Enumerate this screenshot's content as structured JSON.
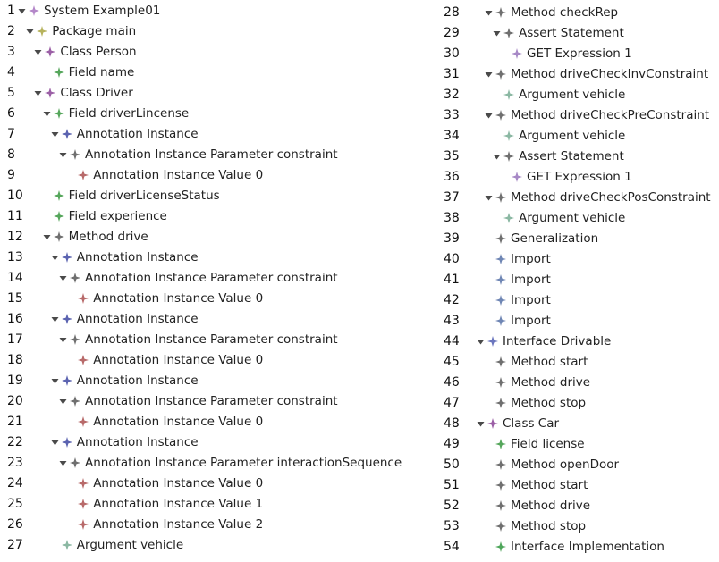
{
  "colors": {
    "system": "#b487c9",
    "package": "#b7b35d",
    "class": "#9b5fa6",
    "field": "#55a65b",
    "annotation": "#5b63b0",
    "annotation_value": "#b86a6a",
    "neutral": "#6f6f6f",
    "argument": "#8bb8a3",
    "expression": "#a789c6",
    "interface": "#6b76be",
    "import": "#6f86b4",
    "field_license": "#4fa65b"
  },
  "left_column": [
    {
      "num": "1",
      "label": "System Example01",
      "depth": 0,
      "expanded": true,
      "icon": "system-icon"
    },
    {
      "num": "2",
      "label": "Package main",
      "depth": 1,
      "expanded": true,
      "icon": "package-icon"
    },
    {
      "num": "3",
      "label": "Class Person",
      "depth": 2,
      "expanded": true,
      "icon": "class-icon"
    },
    {
      "num": "4",
      "label": "Field name",
      "depth": 3,
      "expanded": null,
      "icon": "field-icon"
    },
    {
      "num": "5",
      "label": "Class Driver",
      "depth": 2,
      "expanded": true,
      "icon": "class-icon"
    },
    {
      "num": "6",
      "label": "Field driverLincense",
      "depth": 3,
      "expanded": true,
      "icon": "field-icon"
    },
    {
      "num": "7",
      "label": "Annotation Instance",
      "depth": 4,
      "expanded": true,
      "icon": "annotation-icon"
    },
    {
      "num": "8",
      "label": "Annotation Instance Parameter constraint",
      "depth": 5,
      "expanded": true,
      "icon": "parameter-icon"
    },
    {
      "num": "9",
      "label": "Annotation Instance Value 0",
      "depth": 6,
      "expanded": null,
      "icon": "value-icon"
    },
    {
      "num": "10",
      "label": "Field driverLicenseStatus",
      "depth": 3,
      "expanded": null,
      "icon": "field-icon"
    },
    {
      "num": "11",
      "label": "Field experience",
      "depth": 3,
      "expanded": null,
      "icon": "field-icon"
    },
    {
      "num": "12",
      "label": "Method drive",
      "depth": 3,
      "expanded": true,
      "icon": "method-icon"
    },
    {
      "num": "13",
      "label": "Annotation Instance",
      "depth": 4,
      "expanded": true,
      "icon": "annotation-icon"
    },
    {
      "num": "14",
      "label": "Annotation Instance Parameter constraint",
      "depth": 5,
      "expanded": true,
      "icon": "parameter-icon"
    },
    {
      "num": "15",
      "label": "Annotation Instance Value 0",
      "depth": 6,
      "expanded": null,
      "icon": "value-icon"
    },
    {
      "num": "16",
      "label": "Annotation Instance",
      "depth": 4,
      "expanded": true,
      "icon": "annotation-icon"
    },
    {
      "num": "17",
      "label": "Annotation Instance Parameter constraint",
      "depth": 5,
      "expanded": true,
      "icon": "parameter-icon"
    },
    {
      "num": "18",
      "label": "Annotation Instance Value 0",
      "depth": 6,
      "expanded": null,
      "icon": "value-icon"
    },
    {
      "num": "19",
      "label": "Annotation Instance",
      "depth": 4,
      "expanded": true,
      "icon": "annotation-icon"
    },
    {
      "num": "20",
      "label": "Annotation Instance Parameter constraint",
      "depth": 5,
      "expanded": true,
      "icon": "parameter-icon"
    },
    {
      "num": "21",
      "label": "Annotation Instance Value 0",
      "depth": 6,
      "expanded": null,
      "icon": "value-icon"
    },
    {
      "num": "22",
      "label": "Annotation Instance",
      "depth": 4,
      "expanded": true,
      "icon": "annotation-icon"
    },
    {
      "num": "23",
      "label": "Annotation Instance Parameter interactionSequence",
      "depth": 5,
      "expanded": true,
      "icon": "parameter-icon"
    },
    {
      "num": "24",
      "label": "Annotation Instance Value 0",
      "depth": 6,
      "expanded": null,
      "icon": "value-icon"
    },
    {
      "num": "25",
      "label": "Annotation Instance Value 1",
      "depth": 6,
      "expanded": null,
      "icon": "value-icon"
    },
    {
      "num": "26",
      "label": "Annotation Instance Value 2",
      "depth": 6,
      "expanded": null,
      "icon": "value-icon"
    },
    {
      "num": "27",
      "label": "Argument vehicle",
      "depth": 4,
      "expanded": null,
      "icon": "argument-icon"
    }
  ],
  "right_column": [
    {
      "num": "28",
      "label": "Method checkRep",
      "depth": 1,
      "expanded": true,
      "icon": "method-icon"
    },
    {
      "num": "29",
      "label": "Assert Statement",
      "depth": 2,
      "expanded": true,
      "icon": "statement-icon"
    },
    {
      "num": "30",
      "label": "GET Expression 1",
      "depth": 3,
      "expanded": null,
      "icon": "expression-icon"
    },
    {
      "num": "31",
      "label": "Method driveCheckInvConstraint",
      "depth": 1,
      "expanded": true,
      "icon": "method-icon"
    },
    {
      "num": "32",
      "label": "Argument vehicle",
      "depth": 2,
      "expanded": null,
      "icon": "argument-icon"
    },
    {
      "num": "33",
      "label": "Method driveCheckPreConstraint",
      "depth": 1,
      "expanded": true,
      "icon": "method-icon"
    },
    {
      "num": "34",
      "label": "Argument vehicle",
      "depth": 2,
      "expanded": null,
      "icon": "argument-icon"
    },
    {
      "num": "35",
      "label": "Assert Statement",
      "depth": 2,
      "expanded": true,
      "icon": "statement-icon"
    },
    {
      "num": "36",
      "label": "GET Expression 1",
      "depth": 3,
      "expanded": null,
      "icon": "expression-icon"
    },
    {
      "num": "37",
      "label": "Method driveCheckPosConstraint",
      "depth": 1,
      "expanded": true,
      "icon": "method-icon"
    },
    {
      "num": "38",
      "label": "Argument vehicle",
      "depth": 2,
      "expanded": null,
      "icon": "argument-icon"
    },
    {
      "num": "39",
      "label": "Generalization",
      "depth": 1,
      "expanded": null,
      "icon": "generalization-icon"
    },
    {
      "num": "40",
      "label": "Import",
      "depth": 1,
      "expanded": null,
      "icon": "import-icon"
    },
    {
      "num": "41",
      "label": "Import",
      "depth": 1,
      "expanded": null,
      "icon": "import-icon"
    },
    {
      "num": "42",
      "label": "Import",
      "depth": 1,
      "expanded": null,
      "icon": "import-icon"
    },
    {
      "num": "43",
      "label": "Import",
      "depth": 1,
      "expanded": null,
      "icon": "import-icon"
    },
    {
      "num": "44",
      "label": "Interface Drivable",
      "depth": 0,
      "expanded": true,
      "icon": "interface-icon"
    },
    {
      "num": "45",
      "label": "Method start",
      "depth": 1,
      "expanded": null,
      "icon": "method-icon"
    },
    {
      "num": "46",
      "label": "Method drive",
      "depth": 1,
      "expanded": null,
      "icon": "method-icon"
    },
    {
      "num": "47",
      "label": "Method stop",
      "depth": 1,
      "expanded": null,
      "icon": "method-icon"
    },
    {
      "num": "48",
      "label": "Class Car",
      "depth": 0,
      "expanded": true,
      "icon": "class-icon"
    },
    {
      "num": "49",
      "label": "Field license",
      "depth": 1,
      "expanded": null,
      "icon": "field-icon"
    },
    {
      "num": "50",
      "label": "Method openDoor",
      "depth": 1,
      "expanded": null,
      "icon": "method-icon"
    },
    {
      "num": "51",
      "label": "Method start",
      "depth": 1,
      "expanded": null,
      "icon": "method-icon"
    },
    {
      "num": "52",
      "label": "Method drive",
      "depth": 1,
      "expanded": null,
      "icon": "method-icon"
    },
    {
      "num": "53",
      "label": "Method stop",
      "depth": 1,
      "expanded": null,
      "icon": "method-icon"
    },
    {
      "num": "54",
      "label": "Interface Implementation",
      "depth": 1,
      "expanded": null,
      "icon": "implementation-icon"
    }
  ]
}
